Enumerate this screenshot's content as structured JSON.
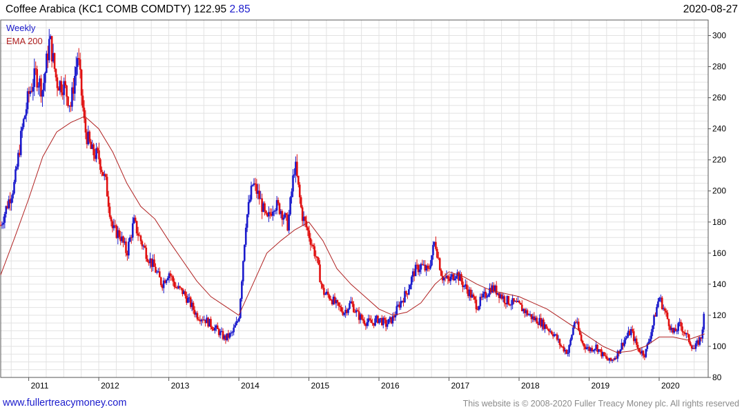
{
  "header": {
    "title": "Coffee Arabica  (KC1 COMB COMDTY) 122.95",
    "change": "2.85",
    "date": "2020-08-27"
  },
  "legend": {
    "interval": "Weekly",
    "ema": "EMA 200"
  },
  "footer": {
    "site": "www.fullertreacymoney.com",
    "copyright": "This website is © 2008-2020 Fuller Treacy Money plc. All rights reserved"
  },
  "colors": {
    "up": "#1a1acc",
    "down": "#e01010",
    "ema": "#b02020",
    "grid": "#e2e2e2",
    "title_change": "#1a1acc"
  },
  "chart_data": {
    "type": "line",
    "title": "Coffee Arabica  (KC1 COMB COMDTY)",
    "xlabel": "",
    "ylabel": "",
    "xlim": [
      2010.6,
      2020.7
    ],
    "ylim": [
      80,
      310
    ],
    "y_ticks": [
      80,
      100,
      120,
      140,
      160,
      180,
      200,
      220,
      240,
      260,
      280,
      300
    ],
    "x_ticks": [
      2011,
      2012,
      2013,
      2014,
      2015,
      2016,
      2017,
      2018,
      2019,
      2020
    ],
    "legend_position": "top-left",
    "grid": true,
    "y_axis_side": "right",
    "series": [
      {
        "name": "Weekly",
        "style": "candlestick",
        "x": [
          2010.6,
          2010.7,
          2010.8,
          2010.9,
          2011.0,
          2011.1,
          2011.2,
          2011.3,
          2011.4,
          2011.5,
          2011.6,
          2011.7,
          2011.8,
          2011.9,
          2012.0,
          2012.1,
          2012.2,
          2012.3,
          2012.4,
          2012.5,
          2012.6,
          2012.7,
          2012.8,
          2012.9,
          2013.0,
          2013.1,
          2013.2,
          2013.3,
          2013.4,
          2013.5,
          2013.6,
          2013.7,
          2013.8,
          2013.9,
          2014.0,
          2014.1,
          2014.2,
          2014.3,
          2014.4,
          2014.5,
          2014.6,
          2014.7,
          2014.8,
          2014.9,
          2015.0,
          2015.1,
          2015.2,
          2015.3,
          2015.4,
          2015.5,
          2015.6,
          2015.7,
          2015.8,
          2015.9,
          2016.0,
          2016.1,
          2016.2,
          2016.3,
          2016.4,
          2016.5,
          2016.6,
          2016.7,
          2016.8,
          2016.9,
          2017.0,
          2017.1,
          2017.2,
          2017.3,
          2017.4,
          2017.5,
          2017.6,
          2017.7,
          2017.8,
          2017.9,
          2018.0,
          2018.1,
          2018.2,
          2018.3,
          2018.4,
          2018.5,
          2018.6,
          2018.7,
          2018.8,
          2018.9,
          2019.0,
          2019.1,
          2019.2,
          2019.3,
          2019.4,
          2019.5,
          2019.6,
          2019.7,
          2019.8,
          2019.9,
          2020.0,
          2020.1,
          2020.2,
          2020.3,
          2020.4,
          2020.5,
          2020.6,
          2020.65
        ],
        "values": [
          178,
          192,
          205,
          238,
          262,
          275,
          265,
          298,
          270,
          268,
          255,
          288,
          240,
          225,
          222,
          205,
          175,
          172,
          160,
          180,
          168,
          158,
          150,
          140,
          148,
          138,
          135,
          128,
          120,
          118,
          114,
          110,
          105,
          108,
          118,
          180,
          205,
          195,
          180,
          192,
          188,
          178,
          218,
          185,
          172,
          158,
          135,
          132,
          126,
          122,
          128,
          120,
          116,
          115,
          118,
          114,
          118,
          128,
          135,
          148,
          152,
          148,
          168,
          145,
          142,
          148,
          140,
          134,
          126,
          132,
          138,
          135,
          130,
          128,
          126,
          122,
          118,
          116,
          112,
          108,
          100,
          96,
          118,
          102,
          98,
          100,
          94,
          90,
          95,
          104,
          110,
          98,
          95,
          112,
          132,
          120,
          108,
          114,
          106,
          98,
          106,
          122.95
        ]
      },
      {
        "name": "EMA 200",
        "style": "line",
        "x": [
          2010.6,
          2010.8,
          2011.0,
          2011.2,
          2011.4,
          2011.6,
          2011.8,
          2012.0,
          2012.2,
          2012.4,
          2012.6,
          2012.8,
          2013.0,
          2013.2,
          2013.4,
          2013.6,
          2013.8,
          2014.0,
          2014.2,
          2014.4,
          2014.6,
          2014.8,
          2015.0,
          2015.2,
          2015.4,
          2015.6,
          2015.8,
          2016.0,
          2016.2,
          2016.4,
          2016.6,
          2016.8,
          2017.0,
          2017.2,
          2017.4,
          2017.6,
          2017.8,
          2018.0,
          2018.2,
          2018.4,
          2018.6,
          2018.8,
          2019.0,
          2019.2,
          2019.4,
          2019.6,
          2019.8,
          2020.0,
          2020.2,
          2020.4,
          2020.65
        ],
        "values": [
          146,
          170,
          195,
          222,
          238,
          244,
          248,
          240,
          225,
          205,
          190,
          182,
          168,
          155,
          142,
          132,
          126,
          120,
          140,
          160,
          168,
          175,
          180,
          168,
          150,
          140,
          132,
          124,
          120,
          122,
          128,
          140,
          148,
          145,
          140,
          136,
          134,
          132,
          128,
          124,
          118,
          112,
          106,
          100,
          96,
          97,
          100,
          106,
          106,
          104,
          108
        ]
      }
    ]
  }
}
